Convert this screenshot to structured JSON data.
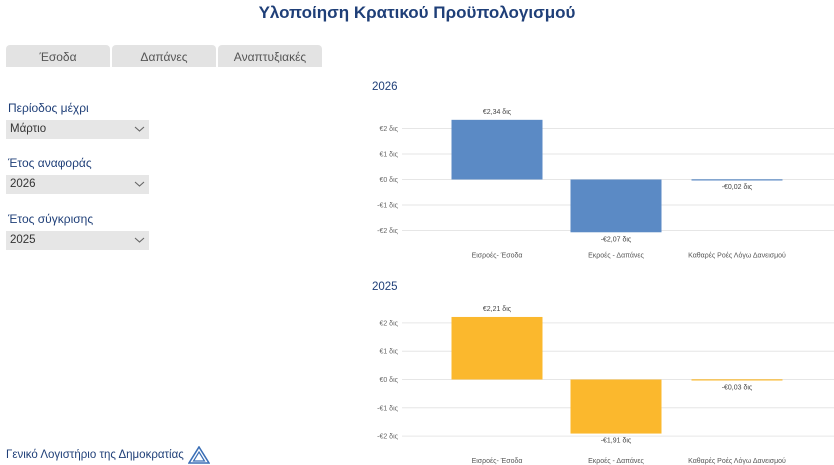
{
  "header": {
    "title": "Υλοποίηση Κρατικού Προϋπολογισμού"
  },
  "tabs": [
    "Έσοδα",
    "Δαπάνες",
    "Αναπτυξιακές"
  ],
  "filters": {
    "period": {
      "label": "Περίοδος μέχρι",
      "value": "Μάρτιο"
    },
    "ref_year": {
      "label": "Έτος αναφοράς",
      "value": "2026"
    },
    "cmp_year": {
      "label": "Έτος σύγκρισης",
      "value": "2025"
    }
  },
  "footer": {
    "org": "Γενικό Λογιστήριο της Δημοκρατίας",
    "logo": "triangle-logo-icon"
  },
  "colors": {
    "accent": "#1f3f78",
    "series_2026": "#5b8ac5",
    "series_2025": "#fbb82d"
  },
  "chart_data": [
    {
      "type": "bar",
      "title": "2026",
      "categories": [
        "Εισροές- Έσοδα",
        "Εκροές - Δαπάνες",
        "Καθαρές Ροές Λόγω Δανεισμού"
      ],
      "values": [
        2.34,
        -2.07,
        -0.02
      ],
      "data_labels": [
        "€2,34 δις",
        "-€2,07 δις",
        "-€0,02 δις"
      ],
      "y_ticks": [
        "€2 δις",
        "€1 δις",
        "€0 δις",
        "-€1 δις",
        "-€2 δις"
      ],
      "ylim": [
        -2.1,
        2.4
      ],
      "grid": true,
      "color": "#5b8ac5"
    },
    {
      "type": "bar",
      "title": "2025",
      "categories": [
        "Εισροές- Έσοδα",
        "Εκροές - Δαπάνες",
        "Καθαρές Ροές Λόγω Δανεισμού"
      ],
      "values": [
        2.21,
        -1.91,
        -0.03
      ],
      "data_labels": [
        "€2,21 δις",
        "-€1,91 δις",
        "-€0,03 δις"
      ],
      "y_ticks": [
        "€2 δις",
        "€1 δις",
        "€0 δις",
        "-€1 δις",
        "-€2 δις"
      ],
      "ylim": [
        -2.1,
        2.4
      ],
      "grid": true,
      "color": "#fbb82d"
    }
  ]
}
